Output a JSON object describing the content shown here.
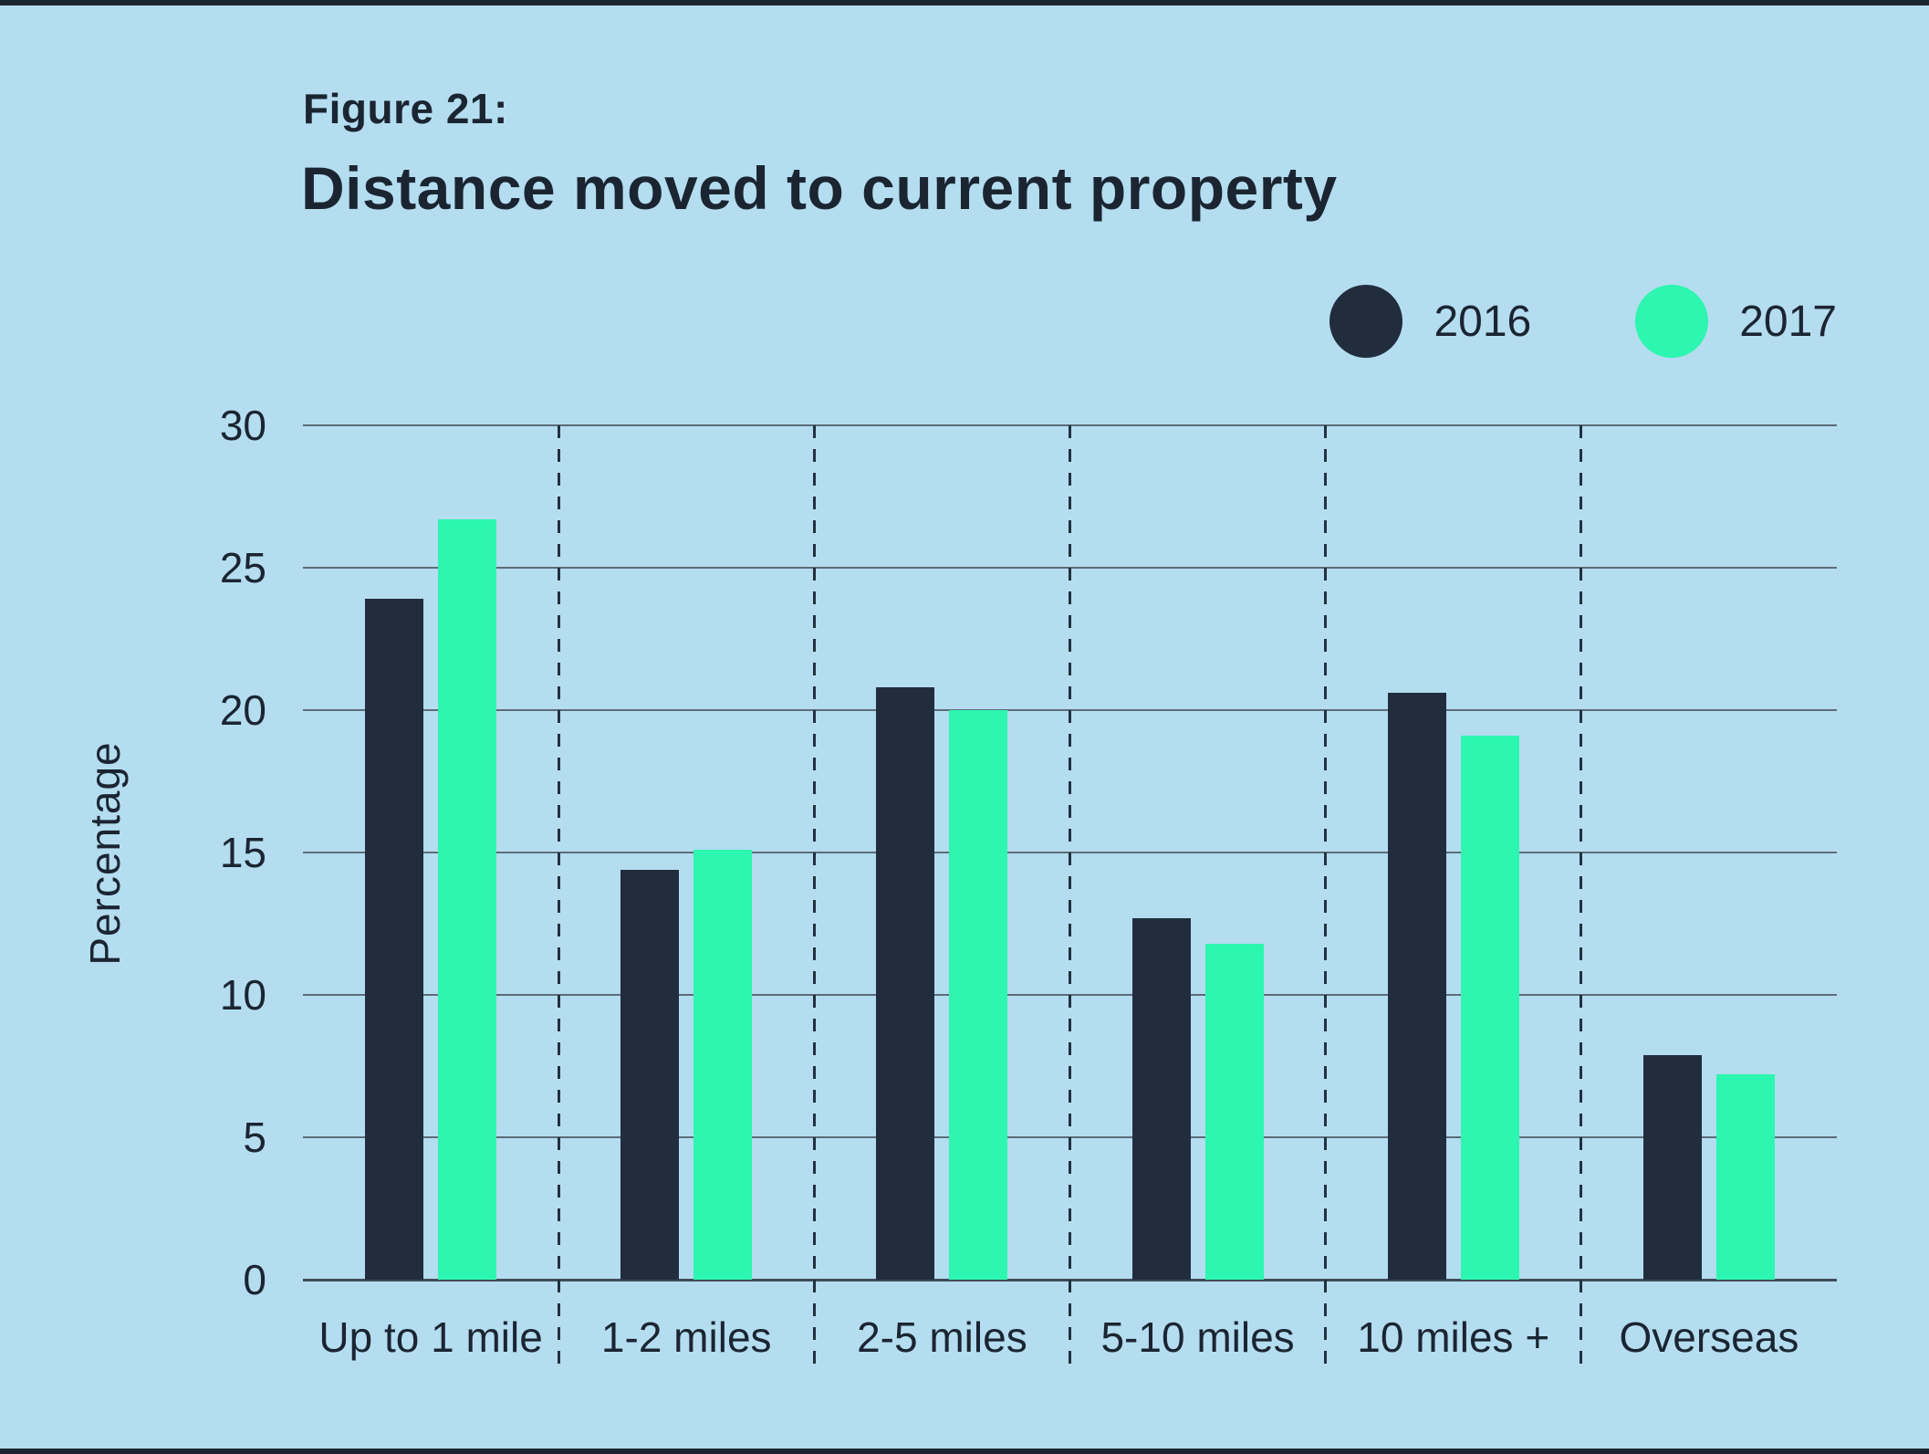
{
  "figure_label": "Figure 21:",
  "title": "Distance moved to current property",
  "legend": [
    {
      "label": "2016",
      "color": "#212d3d"
    },
    {
      "label": "2017",
      "color": "#2cf6af"
    }
  ],
  "y_axis": {
    "label": "Percentage",
    "ticks": [
      0,
      5,
      10,
      15,
      20,
      25,
      30
    ]
  },
  "chart_data": {
    "type": "bar",
    "title": "Distance moved to current property",
    "categories": [
      "Up to 1 mile",
      "1-2 miles",
      "2-5 miles",
      "5-10 miles",
      "10 miles +",
      "Overseas"
    ],
    "series": [
      {
        "name": "2016",
        "color": "#212d3d",
        "values": [
          23.9,
          14.4,
          20.8,
          12.7,
          20.6,
          7.9
        ]
      },
      {
        "name": "2017",
        "color": "#2cf6af",
        "values": [
          26.7,
          15.1,
          20.0,
          11.8,
          19.1,
          7.2
        ]
      }
    ],
    "xlabel": "",
    "ylabel": "Percentage",
    "ylim": [
      0,
      30
    ],
    "ytick_step": 5,
    "grid": true,
    "grid_color": "#5d6c77",
    "legend_position": "top-right",
    "background_color": "#b4ddf0",
    "text_color": "#1b2531"
  }
}
